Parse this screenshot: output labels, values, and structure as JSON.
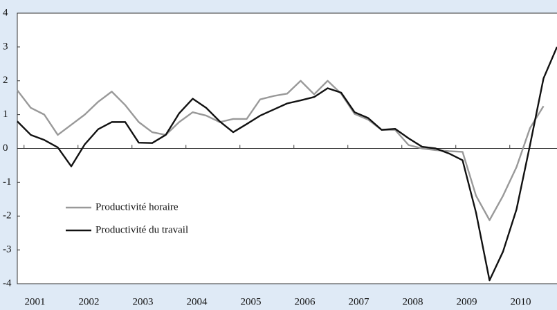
{
  "chart_data": {
    "type": "line",
    "categories": [
      null,
      "2001",
      null,
      null,
      null,
      "2002",
      null,
      null,
      null,
      "2003",
      null,
      null,
      null,
      "2004",
      null,
      null,
      null,
      "2005",
      null,
      null,
      null,
      "2006",
      null,
      null,
      null,
      "2007",
      null,
      null,
      null,
      "2008",
      null,
      null,
      null,
      "2009",
      null,
      null,
      null,
      "2010",
      null,
      null,
      null
    ],
    "series": [
      {
        "name": "Productivité horaire",
        "color": "#999999",
        "values": [
          1.72,
          1.2,
          1.0,
          0.4,
          0.7,
          1.0,
          1.38,
          1.68,
          1.28,
          0.78,
          0.48,
          0.4,
          0.78,
          1.07,
          0.97,
          0.78,
          0.87,
          0.87,
          1.45,
          1.55,
          1.62,
          2.0,
          1.6,
          2.0,
          1.62,
          1.02,
          0.85,
          0.55,
          0.55,
          0.1,
          0.0,
          -0.05,
          -0.08,
          -0.1,
          -1.4,
          -2.12,
          -1.4,
          -0.55,
          0.6,
          1.25,
          null
        ]
      },
      {
        "name": "Productivité du travail",
        "color": "#111111",
        "values": [
          0.8,
          0.4,
          0.25,
          0.03,
          -0.53,
          0.12,
          0.57,
          0.78,
          0.78,
          0.17,
          0.16,
          0.4,
          1.04,
          1.47,
          1.2,
          0.8,
          0.48,
          0.72,
          0.97,
          1.15,
          1.33,
          1.42,
          1.52,
          1.78,
          1.65,
          1.07,
          0.9,
          0.55,
          0.58,
          0.3,
          0.05,
          0.0,
          -0.15,
          -0.35,
          -1.9,
          -3.9,
          -3.05,
          -1.8,
          0.1,
          2.07,
          3.0
        ]
      }
    ],
    "ylim": [
      -4,
      4
    ],
    "yticks": [
      -4,
      -3,
      -2,
      -1,
      0,
      1,
      2,
      3,
      4
    ],
    "zero_line": true
  }
}
